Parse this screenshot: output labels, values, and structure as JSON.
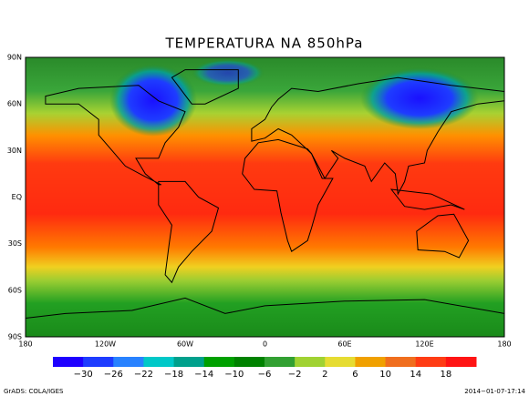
{
  "title": "TEMPERATURA NA 850hPa",
  "map": {
    "lon_labels": [
      "180",
      "120W",
      "60W",
      "0",
      "60E",
      "120E",
      "180"
    ],
    "lat_labels": [
      "90N",
      "60N",
      "30N",
      "EQ",
      "30S",
      "60S",
      "90S"
    ]
  },
  "colorbar": {
    "labels": [
      -30,
      -26,
      -22,
      -18,
      -14,
      -10,
      -6,
      -2,
      2,
      6,
      10,
      14,
      18
    ],
    "colors": [
      "#1e00ff",
      "#1e3cff",
      "#2882ff",
      "#00c8c8",
      "#00a08c",
      "#00a000",
      "#008200",
      "#32a032",
      "#a0d232",
      "#e6dc32",
      "#f0a000",
      "#f06e1e",
      "#ff3c14",
      "#ff1414"
    ]
  },
  "footer": {
    "left": "GrADS: COLA/IGES",
    "right": "2014-01-07-17:14"
  }
}
